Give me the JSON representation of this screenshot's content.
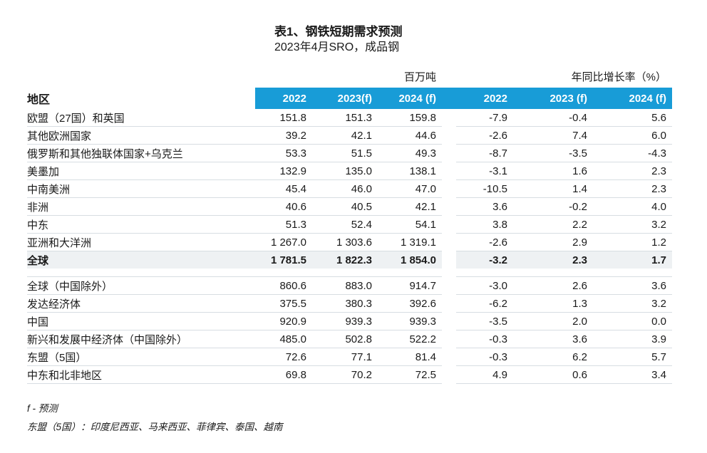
{
  "chart_data": {
    "type": "table",
    "title": "表1、钢铁短期需求预测",
    "subtitle": "2023年4月SRO，成品钢",
    "region_column_header": "地区",
    "column_groups": [
      {
        "label": "百万吨",
        "columns": [
          "2022",
          "2023(f)",
          "2024 (f)"
        ]
      },
      {
        "label": "年同比增长率（%）",
        "columns": [
          "2022",
          "2023 (f)",
          "2024 (f)"
        ]
      }
    ],
    "sections": [
      {
        "rows": [
          {
            "region": "欧盟（27国）和英国",
            "indent": 0,
            "bold": false,
            "highlight": false,
            "million_tonnes": [
              "151.8",
              "151.3",
              "159.8"
            ],
            "yoy_growth_pct": [
              "-7.9",
              "-0.4",
              "5.6"
            ]
          },
          {
            "region": "其他欧洲国家",
            "indent": 0,
            "bold": false,
            "highlight": false,
            "million_tonnes": [
              "39.2",
              "42.1",
              "44.6"
            ],
            "yoy_growth_pct": [
              "-2.6",
              "7.4",
              "6.0"
            ]
          },
          {
            "region": "俄罗斯和其他独联体国家+乌克兰",
            "indent": 0,
            "bold": false,
            "highlight": false,
            "million_tonnes": [
              "53.3",
              "51.5",
              "49.3"
            ],
            "yoy_growth_pct": [
              "-8.7",
              "-3.5",
              "-4.3"
            ]
          },
          {
            "region": "美墨加",
            "indent": 0,
            "bold": false,
            "highlight": false,
            "million_tonnes": [
              "132.9",
              "135.0",
              "138.1"
            ],
            "yoy_growth_pct": [
              "-3.1",
              "1.6",
              "2.3"
            ]
          },
          {
            "region": "中南美洲",
            "indent": 0,
            "bold": false,
            "highlight": false,
            "million_tonnes": [
              "45.4",
              "46.0",
              "47.0"
            ],
            "yoy_growth_pct": [
              "-10.5",
              "1.4",
              "2.3"
            ]
          },
          {
            "region": "非洲",
            "indent": 0,
            "bold": false,
            "highlight": false,
            "million_tonnes": [
              "40.6",
              "40.5",
              "42.1"
            ],
            "yoy_growth_pct": [
              "3.6",
              "-0.2",
              "4.0"
            ]
          },
          {
            "region": "中东",
            "indent": 0,
            "bold": false,
            "highlight": false,
            "million_tonnes": [
              "51.3",
              "52.4",
              "54.1"
            ],
            "yoy_growth_pct": [
              "3.8",
              "2.2",
              "3.2"
            ]
          },
          {
            "region": "亚洲和大洋洲",
            "indent": 0,
            "bold": false,
            "highlight": false,
            "million_tonnes": [
              "1 267.0",
              "1 303.6",
              "1 319.1"
            ],
            "yoy_growth_pct": [
              "-2.6",
              "2.9",
              "1.2"
            ]
          },
          {
            "region": "全球",
            "indent": 0,
            "bold": true,
            "highlight": true,
            "million_tonnes": [
              "1 781.5",
              "1 822.3",
              "1 854.0"
            ],
            "yoy_growth_pct": [
              "-3.2",
              "2.3",
              "1.7"
            ]
          }
        ]
      },
      {
        "rows": [
          {
            "region": "全球（中国除外）",
            "indent": 1,
            "bold": false,
            "highlight": false,
            "million_tonnes": [
              "860.6",
              "883.0",
              "914.7"
            ],
            "yoy_growth_pct": [
              "-3.0",
              "2.6",
              "3.6"
            ]
          },
          {
            "region": "发达经济体",
            "indent": 1,
            "bold": false,
            "highlight": false,
            "million_tonnes": [
              "375.5",
              "380.3",
              "392.6"
            ],
            "yoy_growth_pct": [
              "-6.2",
              "1.3",
              "3.2"
            ]
          },
          {
            "region": "中国",
            "indent": 1,
            "bold": false,
            "highlight": false,
            "million_tonnes": [
              "920.9",
              "939.3",
              "939.3"
            ],
            "yoy_growth_pct": [
              "-3.5",
              "2.0",
              "0.0"
            ]
          },
          {
            "region": "新兴和发展中经济体（中国除外）",
            "indent": 1,
            "bold": false,
            "highlight": false,
            "million_tonnes": [
              "485.0",
              "502.8",
              "522.2"
            ],
            "yoy_growth_pct": [
              "-0.3",
              "3.6",
              "3.9"
            ]
          },
          {
            "region": "东盟（5国）",
            "indent": 2,
            "bold": false,
            "highlight": false,
            "million_tonnes": [
              "72.6",
              "77.1",
              "81.4"
            ],
            "yoy_growth_pct": [
              "-0.3",
              "6.2",
              "5.7"
            ]
          },
          {
            "region": "中东和北非地区",
            "indent": 2,
            "bold": false,
            "highlight": false,
            "million_tonnes": [
              "69.8",
              "70.2",
              "72.5"
            ],
            "yoy_growth_pct": [
              "4.9",
              "0.6",
              "3.4"
            ]
          }
        ]
      }
    ],
    "footnotes": [
      "f - 预测",
      "东盟（5国）：印度尼西亚、马来西亚、菲律宾、泰国、越南"
    ]
  },
  "colors": {
    "header_bg": "#189CD7",
    "header_text": "#ffffff",
    "total_row_bg": "#eef1f3",
    "row_divider": "#d7dde2"
  }
}
